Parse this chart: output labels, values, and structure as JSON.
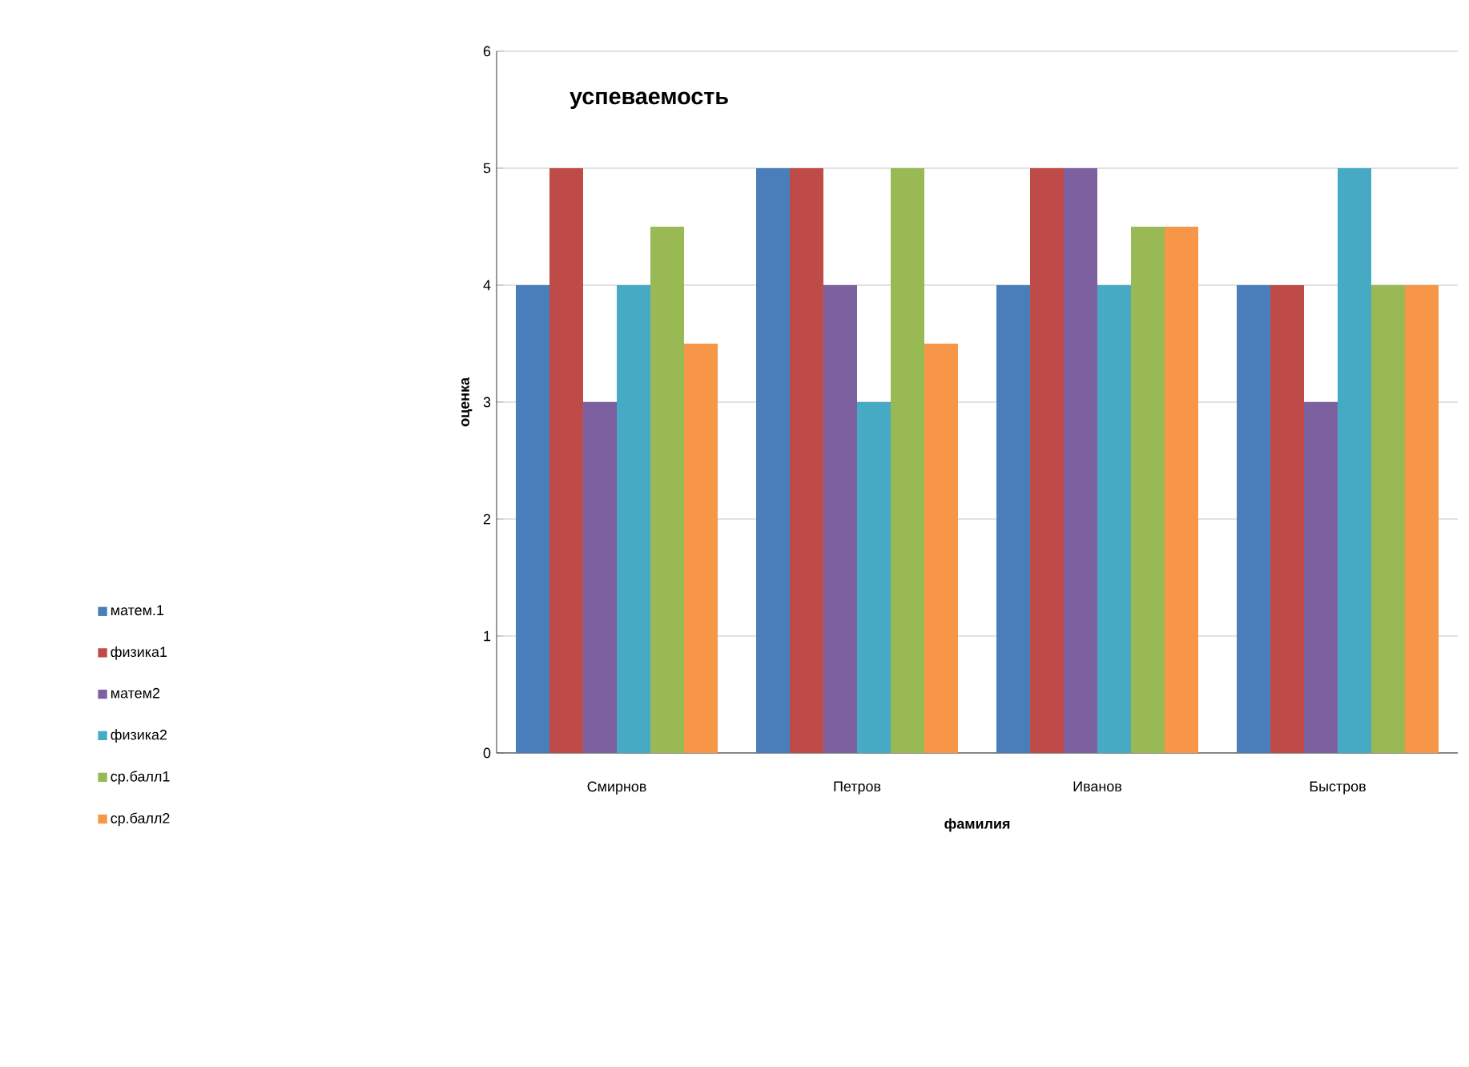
{
  "chart_data": {
    "type": "bar",
    "title": "успеваемость",
    "xlabel": "фамилия",
    "ylabel": "оценка",
    "categories": [
      "Смирнов",
      "Петров",
      "Иванов",
      "Быстров"
    ],
    "series": [
      {
        "name": "матем.1",
        "color": "#4a7ebb",
        "values": [
          4,
          5,
          4,
          4
        ]
      },
      {
        "name": "физика1",
        "color": "#be4b48",
        "values": [
          5,
          5,
          5,
          4
        ]
      },
      {
        "name": "матем2",
        "color": "#7d60a0",
        "values": [
          3,
          4,
          5,
          3
        ]
      },
      {
        "name": "физика2",
        "color": "#46aac5",
        "values": [
          4,
          3,
          4,
          5
        ]
      },
      {
        "name": "ср.балл1",
        "color": "#98b954",
        "values": [
          4.5,
          5,
          4.5,
          4
        ]
      },
      {
        "name": "ср.балл2",
        "color": "#f79646",
        "values": [
          3.5,
          3.5,
          4.5,
          4
        ]
      }
    ],
    "ylim": [
      0,
      6
    ],
    "yticks": [
      0,
      1,
      2,
      3,
      4,
      5,
      6
    ],
    "grid": "y",
    "legend": "left"
  }
}
